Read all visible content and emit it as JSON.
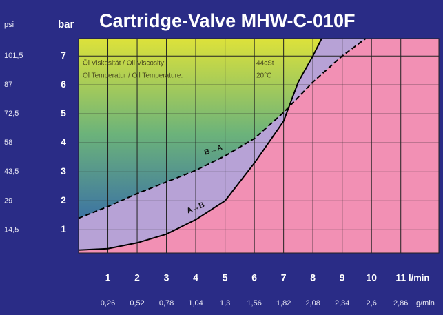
{
  "chart_data": {
    "type": "line",
    "title": "Cartridge-Valve MHW-C-010F",
    "y_label": "bar",
    "y2_label": "psi",
    "x_label": "l/min",
    "x2_label": "g/min",
    "annotations": [
      "Öl Viskosität / Oil Viscosity:",
      "44cSt",
      "Öl Temperatur / Oil Temperature:",
      "20°C"
    ],
    "xlim": [
      0,
      12.3
    ],
    "xticks": [
      1,
      2,
      3,
      4,
      5,
      6,
      7,
      8,
      9,
      10,
      11
    ],
    "x2lim": [
      0,
      3.198
    ],
    "x2ticks": [
      {
        "value": 0.26,
        "label": "0,26"
      },
      {
        "value": 0.52,
        "label": "0,52"
      },
      {
        "value": 0.78,
        "label": "0,78"
      },
      {
        "value": 1.04,
        "label": "1,04"
      },
      {
        "value": 1.3,
        "label": "1,3"
      },
      {
        "value": 1.56,
        "label": "1,56"
      },
      {
        "value": 1.82,
        "label": "1,82"
      },
      {
        "value": 2.08,
        "label": "2,08"
      },
      {
        "value": 2.34,
        "label": "2,34"
      },
      {
        "value": 2.6,
        "label": "2,6"
      },
      {
        "value": 2.86,
        "label": "2,86"
      }
    ],
    "ylim": [
      0.2,
      7.6
    ],
    "yticks": [
      1,
      2,
      3,
      4,
      5,
      6,
      7
    ],
    "y2lim": [
      2.9,
      110.2
    ],
    "y2ticks": [
      {
        "value": 14.5,
        "label": "14,5"
      },
      29,
      {
        "value": 43.5,
        "label": "43,5"
      },
      58,
      {
        "value": 72.5,
        "label": "72,5"
      },
      87,
      {
        "value": 101.5,
        "label": "101,5"
      }
    ],
    "grid": true,
    "series": [
      {
        "name": "A→B",
        "color": "#000000",
        "dashed": false,
        "x": [
          0,
          1,
          2,
          3,
          4,
          5,
          6,
          7,
          7.5,
          8,
          8.3
        ],
        "values": [
          0.3,
          0.35,
          0.55,
          0.85,
          1.35,
          2.0,
          3.3,
          4.75,
          6.1,
          7.0,
          7.6
        ]
      },
      {
        "name": "B→A",
        "color": "#000000",
        "dashed": true,
        "x": [
          0,
          1,
          2,
          3,
          4,
          5,
          6,
          7,
          8,
          9,
          9.8
        ],
        "values": [
          1.4,
          1.8,
          2.25,
          2.65,
          3.05,
          3.55,
          4.15,
          5.05,
          6.1,
          7.0,
          7.6
        ]
      }
    ]
  }
}
